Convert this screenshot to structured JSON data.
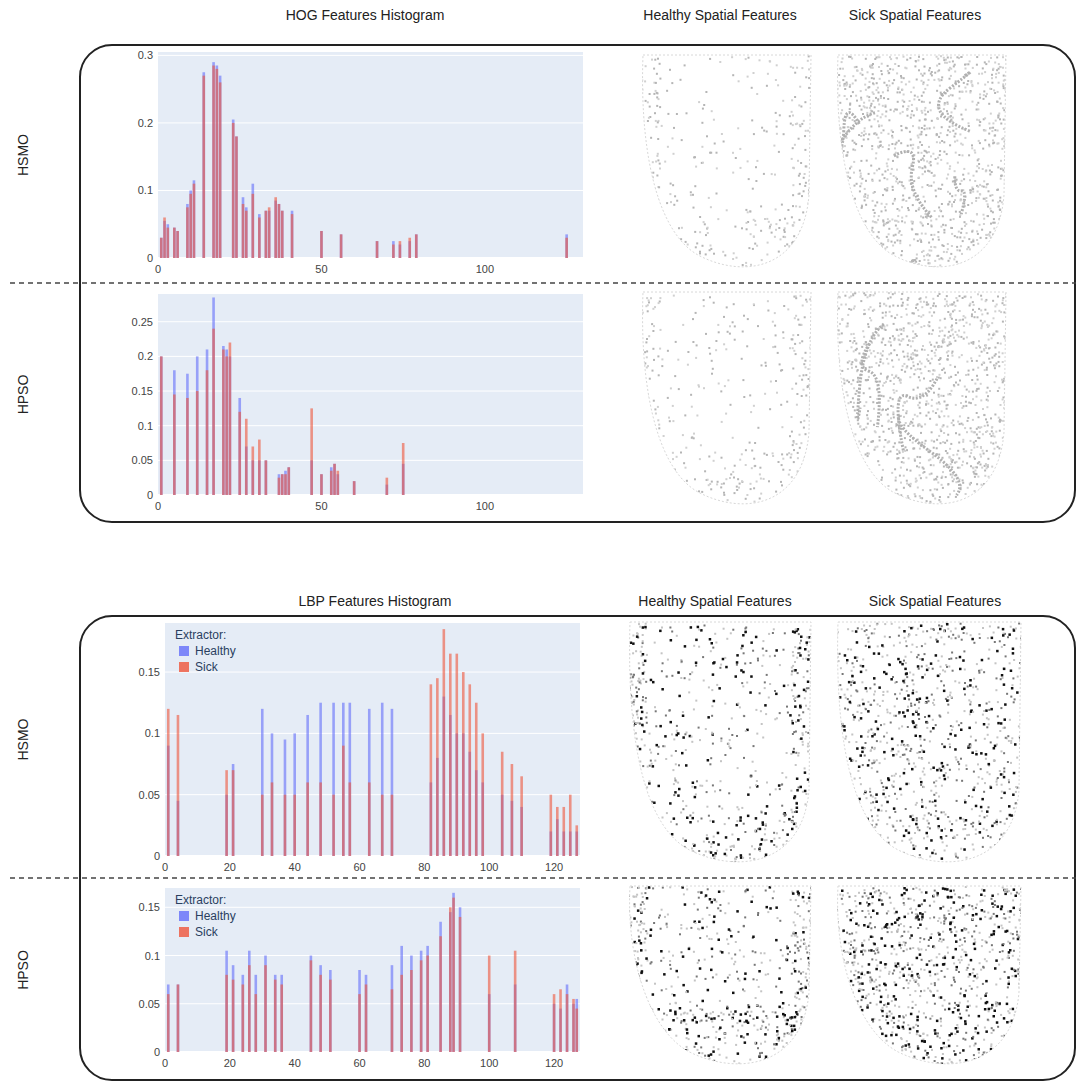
{
  "figure": {
    "panels": [
      {
        "headers": [
          "HOG Features Histogram",
          "Healthy Spatial Features",
          "Sick Spatial Features"
        ],
        "rows": [
          "HSMO",
          "HPSO"
        ]
      },
      {
        "headers": [
          "LBP Features Histogram",
          "Healthy Spatial Features",
          "Sick Spatial Features"
        ],
        "rows": [
          "HSMO",
          "HPSO"
        ]
      }
    ]
  },
  "chart_data": [
    {
      "type": "bar",
      "grid": true,
      "x": [
        1,
        2,
        3,
        5,
        6,
        9,
        10,
        11,
        14,
        17,
        18,
        19,
        23,
        24,
        26,
        27,
        29,
        31,
        33,
        34,
        36,
        37,
        38,
        41,
        50,
        56,
        67,
        72,
        74,
        77,
        79,
        125
      ],
      "series": [
        {
          "name": "Healthy",
          "color": "#636efa",
          "values": [
            0.03,
            0.055,
            0.05,
            0.045,
            0.04,
            0.08,
            0.1,
            0.115,
            0.275,
            0.29,
            0.285,
            0.27,
            0.205,
            0.18,
            0.09,
            0.075,
            0.11,
            0.065,
            0.07,
            0.07,
            0.085,
            0.08,
            0.07,
            0.07,
            0.04,
            0.035,
            0.025,
            0.025,
            0.02,
            0.025,
            0.035,
            0.035
          ]
        },
        {
          "name": "Sick",
          "color": "#ef553b",
          "values": [
            0.03,
            0.06,
            0.045,
            0.045,
            0.04,
            0.075,
            0.095,
            0.11,
            0.27,
            0.285,
            0.28,
            0.26,
            0.2,
            0.18,
            0.08,
            0.07,
            0.095,
            0.06,
            0.07,
            0.075,
            0.09,
            0.08,
            0.07,
            0.065,
            0.04,
            0.035,
            0.025,
            0.02,
            0.025,
            0.03,
            0.035,
            0.03
          ]
        }
      ],
      "xlim": [
        0,
        130
      ],
      "xticks": [
        0,
        50,
        100
      ],
      "ylim": [
        0,
        0.305
      ],
      "yticks": [
        0,
        0.1,
        0.2,
        0.3
      ]
    },
    {
      "type": "bar",
      "grid": true,
      "x": [
        1,
        5,
        9,
        12,
        15,
        17,
        20,
        21,
        22,
        25,
        27,
        29,
        31,
        33,
        37,
        38,
        39,
        40,
        47,
        50,
        53,
        54,
        55,
        60,
        70,
        75
      ],
      "series": [
        {
          "name": "Healthy",
          "color": "#636efa",
          "values": [
            0.2,
            0.18,
            0.175,
            0.2,
            0.21,
            0.285,
            0.215,
            0.21,
            0.2,
            0.14,
            0.07,
            0.05,
            0.05,
            0.05,
            0.03,
            0.03,
            0.035,
            0.04,
            0.05,
            0.03,
            0.04,
            0.045,
            0.03,
            0.02,
            0.015,
            0.045
          ]
        },
        {
          "name": "Sick",
          "color": "#ef553b",
          "values": [
            0.2,
            0.145,
            0.14,
            0.15,
            0.18,
            0.24,
            0.21,
            0.2,
            0.22,
            0.12,
            0.11,
            0.07,
            0.08,
            0.05,
            0.025,
            0.03,
            0.03,
            0.04,
            0.125,
            0.03,
            0.035,
            0.045,
            0.035,
            0.02,
            0.025,
            0.075
          ]
        }
      ],
      "xlim": [
        0,
        130
      ],
      "xticks": [
        0,
        50,
        100
      ],
      "ylim": [
        0,
        0.29
      ],
      "yticks": [
        0,
        0.05,
        0.1,
        0.15,
        0.2,
        0.25
      ]
    },
    {
      "type": "bar",
      "grid": true,
      "legend": "upper-left",
      "legend_title": "Extractor:",
      "x": [
        1,
        4,
        19,
        21,
        30,
        33,
        37,
        40,
        44,
        48,
        52,
        55,
        57,
        63,
        67,
        70,
        82,
        84,
        86,
        88,
        90,
        92,
        94,
        96,
        98,
        104,
        107,
        110,
        119,
        121,
        123,
        125,
        127
      ],
      "series": [
        {
          "name": "Healthy",
          "color": "#636efa",
          "values": [
            0.09,
            0.045,
            0.05,
            0.075,
            0.12,
            0.1,
            0.095,
            0.1,
            0.115,
            0.125,
            0.125,
            0.125,
            0.125,
            0.12,
            0.125,
            0.12,
            0.06,
            0.08,
            0.13,
            0.115,
            0.1,
            0.1,
            0.085,
            0.07,
            0.06,
            0.05,
            0.045,
            0.04,
            0.02,
            0.03,
            0.02,
            0.02,
            0.02
          ]
        },
        {
          "name": "Sick",
          "color": "#ef553b",
          "values": [
            0.12,
            0.115,
            0.07,
            0.07,
            0.05,
            0.06,
            0.05,
            0.05,
            0.06,
            0.06,
            0.05,
            0.09,
            0.06,
            0.06,
            0.05,
            0.05,
            0.14,
            0.145,
            0.185,
            0.165,
            0.165,
            0.15,
            0.14,
            0.125,
            0.1,
            0.085,
            0.075,
            0.065,
            0.05,
            0.04,
            0.04,
            0.05,
            0.025
          ]
        }
      ],
      "xlim": [
        0,
        128
      ],
      "xticks": [
        0,
        20,
        40,
        60,
        80,
        100,
        120
      ],
      "ylim": [
        0,
        0.19
      ],
      "yticks": [
        0,
        0.05,
        0.1,
        0.15
      ]
    },
    {
      "type": "bar",
      "grid": true,
      "legend": "upper-left",
      "legend_title": "Extractor:",
      "x": [
        1,
        4,
        19,
        21,
        24,
        26,
        28,
        31,
        34,
        36,
        45,
        48,
        51,
        60,
        62,
        70,
        73,
        76,
        79,
        81,
        85,
        88,
        89,
        91,
        100,
        108,
        120,
        122,
        124,
        126,
        127
      ],
      "series": [
        {
          "name": "Healthy",
          "color": "#636efa",
          "values": [
            0.07,
            0.07,
            0.105,
            0.09,
            0.08,
            0.105,
            0.08,
            0.1,
            0.08,
            0.08,
            0.1,
            0.09,
            0.085,
            0.085,
            0.08,
            0.09,
            0.11,
            0.1,
            0.105,
            0.11,
            0.135,
            0.145,
            0.165,
            0.15,
            0.06,
            0.07,
            0.05,
            0.045,
            0.07,
            0.05,
            0.055
          ]
        },
        {
          "name": "Sick",
          "color": "#ef553b",
          "values": [
            0.06,
            0.07,
            0.08,
            0.075,
            0.07,
            0.09,
            0.06,
            0.09,
            0.075,
            0.07,
            0.095,
            0.08,
            0.075,
            0.06,
            0.07,
            0.065,
            0.08,
            0.085,
            0.095,
            0.1,
            0.12,
            0.15,
            0.16,
            0.14,
            0.1,
            0.105,
            0.06,
            0.065,
            0.06,
            0.055,
            0.045
          ]
        }
      ],
      "xlim": [
        0,
        128
      ],
      "xticks": [
        0,
        20,
        40,
        60,
        80,
        100,
        120
      ],
      "ylim": [
        0,
        0.17
      ],
      "yticks": [
        0,
        0.05,
        0.1,
        0.15
      ]
    }
  ]
}
